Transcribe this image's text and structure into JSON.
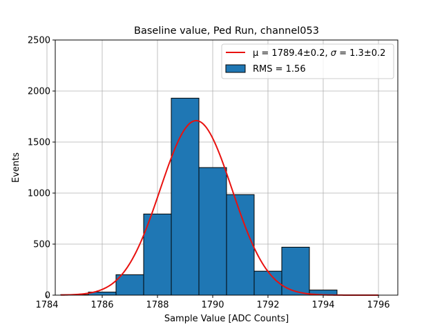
{
  "chart_data": {
    "type": "bar",
    "title": "Baseline value, Ped Run, channel053",
    "xlabel": "Sample Value [ADC Counts]",
    "ylabel": "Events",
    "xlim": [
      1784.3,
      1796.7
    ],
    "ylim": [
      0,
      2500
    ],
    "xticks": [
      1784,
      1786,
      1788,
      1790,
      1792,
      1794,
      1796
    ],
    "yticks": [
      0,
      500,
      1000,
      1500,
      2000,
      2500
    ],
    "grid": true,
    "legend_position": "top-right",
    "histogram": {
      "name": "RMS = 1.56",
      "color": "#1f77b4",
      "edge_color": "#000000",
      "bins": [
        {
          "x0": 1784.5,
          "x1": 1785.5,
          "value": 5
        },
        {
          "x0": 1785.5,
          "x1": 1786.5,
          "value": 30
        },
        {
          "x0": 1786.5,
          "x1": 1787.5,
          "value": 200
        },
        {
          "x0": 1787.5,
          "x1": 1788.5,
          "value": 795
        },
        {
          "x0": 1788.5,
          "x1": 1789.5,
          "value": 1930
        },
        {
          "x0": 1789.5,
          "x1": 1790.5,
          "value": 1250
        },
        {
          "x0": 1790.5,
          "x1": 1791.5,
          "value": 985
        },
        {
          "x0": 1791.5,
          "x1": 1792.5,
          "value": 235
        },
        {
          "x0": 1792.5,
          "x1": 1793.5,
          "value": 470
        },
        {
          "x0": 1793.5,
          "x1": 1794.5,
          "value": 50
        }
      ]
    },
    "fit": {
      "name_prefix": "μ = 1789.4±0.2, ",
      "name_sigma": "σ",
      "name_suffix": " = 1.3±0.2",
      "color": "#e8110f",
      "type": "gaussian",
      "mean": 1789.4,
      "sigma": 1.3,
      "amplitude": 1710,
      "x_range": [
        1784.5,
        1796
      ]
    }
  }
}
